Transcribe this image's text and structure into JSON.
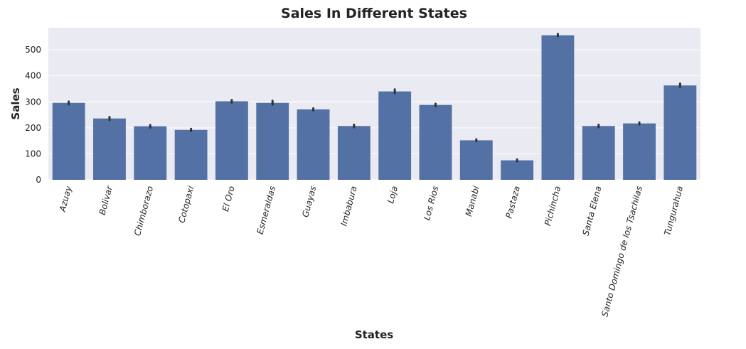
{
  "chart_data": {
    "type": "bar",
    "title": "Sales In Different States",
    "xlabel": "States",
    "ylabel": "Sales",
    "categories": [
      "Azuay",
      "Bolivar",
      "Chimborazo",
      "Cotopaxi",
      "El Oro",
      "Esmeraldas",
      "Guayas",
      "Imbabura",
      "Loja",
      "Los Rios",
      "Manabi",
      "Pastaza",
      "Pichincha",
      "Santa Elena",
      "Santo Domingo de los Tsachilas",
      "Tungurahua"
    ],
    "values": [
      296,
      236,
      206,
      192,
      302,
      296,
      271,
      207,
      340,
      288,
      152,
      75,
      556,
      207,
      217,
      363
    ],
    "error_low": [
      290,
      230,
      201,
      188,
      297,
      289,
      267,
      202,
      333,
      283,
      148,
      71,
      552,
      202,
      213,
      357
    ],
    "error_high": [
      301,
      242,
      211,
      196,
      307,
      304,
      275,
      212,
      348,
      293,
      156,
      79,
      561,
      212,
      221,
      370
    ],
    "yticks": [
      0,
      100,
      200,
      300,
      400,
      500
    ],
    "ylim": [
      0,
      585
    ],
    "grid": true,
    "colors": {
      "bar": "#5471a5",
      "plot_background": "#eaeaf2",
      "grid": "#ffffff",
      "error_bar": "#333333"
    }
  }
}
